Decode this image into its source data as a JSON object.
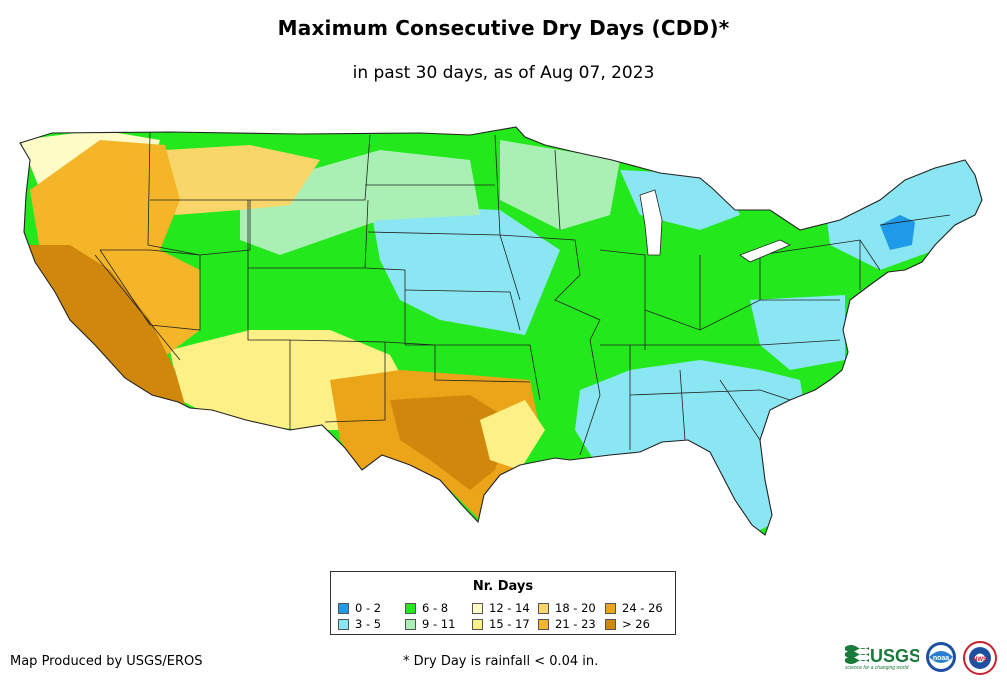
{
  "title": "Maximum Consecutive Dry Days (CDD)*",
  "subtitle": "in past 30 days, as of Aug 07, 2023",
  "legend": {
    "title": "Nr. Days",
    "items": [
      {
        "label": "0 - 2",
        "color": "#1e9ae8"
      },
      {
        "label": "3 - 5",
        "color": "#8ae6f2"
      },
      {
        "label": "6 - 8",
        "color": "#22e81c"
      },
      {
        "label": "9 - 11",
        "color": "#aaf0b4"
      },
      {
        "label": "12 - 14",
        "color": "#fffcc8"
      },
      {
        "label": "15 - 17",
        "color": "#fcf086"
      },
      {
        "label": "18 - 20",
        "color": "#f8d66a"
      },
      {
        "label": "21 - 23",
        "color": "#f4b628"
      },
      {
        "label": "24 - 26",
        "color": "#eca418"
      },
      {
        "label": "> 26",
        "color": "#d0880c"
      }
    ]
  },
  "credit": "Map Produced by USGS/EROS",
  "footnote": "* Dry Day is rainfall < 0.04 in.",
  "logos": {
    "usgs_text": "USGS",
    "usgs_tagline": "science for a changing world",
    "noaa_text": "noaa",
    "nws_text": "NWS"
  }
}
